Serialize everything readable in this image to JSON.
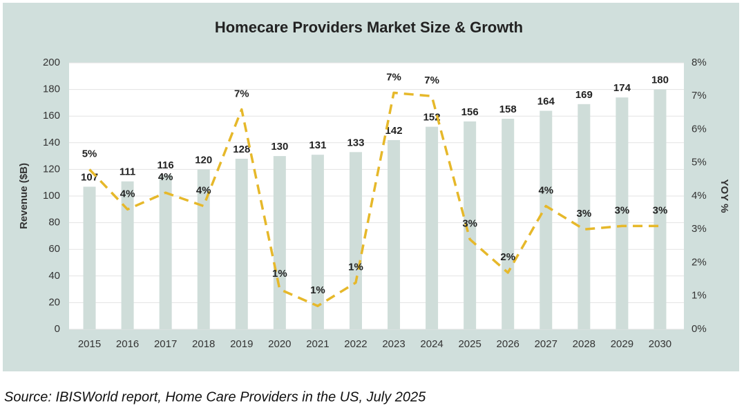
{
  "chart_data": {
    "type": "bar",
    "title": "Homecare Providers Market Size & Growth",
    "y_label": "Revenue ($B)",
    "y2_label": "YOY %",
    "source": "Source: IBISWorld report, Home Care Providers in the US, July 2025",
    "categories": [
      "2015",
      "2016",
      "2017",
      "2018",
      "2019",
      "2020",
      "2021",
      "2022",
      "2023",
      "2024",
      "2025",
      "2026",
      "2027",
      "2028",
      "2029",
      "2030"
    ],
    "series": [
      {
        "type": "bar",
        "color": "#cfddd9",
        "values": [
          107,
          111,
          116,
          120,
          128,
          130,
          131,
          133,
          142,
          152,
          156,
          158,
          164,
          169,
          174,
          180
        ]
      },
      {
        "type": "line",
        "axis": "y2",
        "color": "#e6b82a",
        "dashed": true,
        "values": [
          4.8,
          3.6,
          4.1,
          3.7,
          6.6,
          1.2,
          0.7,
          1.4,
          7.1,
          7.0,
          2.7,
          1.7,
          3.7,
          3.0,
          3.1,
          3.1
        ],
        "value_labels": [
          "5%",
          "4%",
          "4%",
          "4%",
          "7%",
          "1%",
          "1%",
          "1%",
          "7%",
          "7%",
          "3%",
          "2%",
          "4%",
          "3%",
          "3%",
          "3%"
        ]
      }
    ],
    "ylim": [
      0,
      200
    ],
    "yticks": [
      0,
      20,
      40,
      60,
      80,
      100,
      120,
      140,
      160,
      180,
      200
    ],
    "y2lim": [
      0,
      8
    ],
    "y2ticks": [
      {
        "value": 0,
        "label": "0%"
      },
      {
        "value": 1,
        "label": "1%"
      },
      {
        "value": 2,
        "label": "2%"
      },
      {
        "value": 3,
        "label": "3%"
      },
      {
        "value": 4,
        "label": "4%"
      },
      {
        "value": 5,
        "label": "5%"
      },
      {
        "value": 6,
        "label": "6%"
      },
      {
        "value": 7,
        "label": "7%"
      },
      {
        "value": 8,
        "label": "8%"
      }
    ],
    "grid": true
  }
}
